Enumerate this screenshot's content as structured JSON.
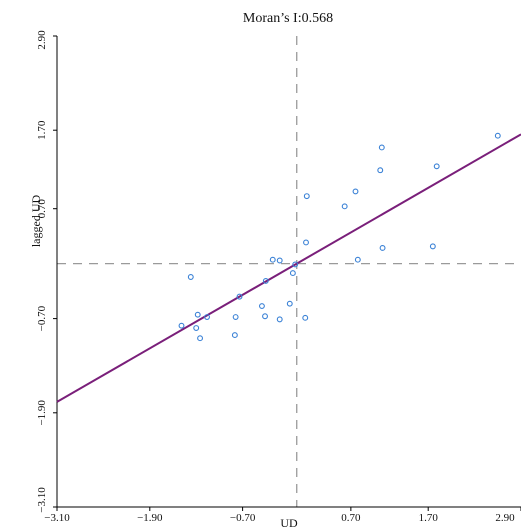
{
  "chart_data": {
    "type": "scatter",
    "title": "Moran’s I:0.568",
    "xlabel": "UD",
    "ylabel": "lagged UD",
    "xlim": [
      -3.1,
      2.9
    ],
    "ylim": [
      -3.1,
      2.9
    ],
    "x_ticks": [
      "−3.10",
      "−1.90",
      "−0.70",
      "0.70",
      "1.70",
      "2.90"
    ],
    "x_tick_values": [
      -3.1,
      -1.9,
      -0.7,
      0.7,
      1.7,
      2.9
    ],
    "y_ticks": [
      "−3.10",
      "−1.90",
      "−0.70",
      "0.70",
      "1.70",
      "2.90"
    ],
    "y_tick_values": [
      -3.1,
      -1.9,
      -0.7,
      0.7,
      1.7,
      2.9
    ],
    "grid": false,
    "reference_lines": {
      "x": 0.0,
      "y": 0.0
    },
    "regression_line": {
      "slope": 0.568,
      "intercept": 0.0
    },
    "colors": {
      "points": "#3b82d6",
      "regression": "#7a1f7a",
      "reference": "#9a9a9a",
      "axis": "#000000"
    },
    "points": [
      [
        -1.37,
        -0.17
      ],
      [
        -1.49,
        -0.79
      ],
      [
        -1.3,
        -0.82
      ],
      [
        -1.28,
        -0.65
      ],
      [
        -1.25,
        -0.95
      ],
      [
        -1.16,
        -0.68
      ],
      [
        -0.8,
        -0.91
      ],
      [
        -0.79,
        -0.68
      ],
      [
        -0.74,
        -0.42
      ],
      [
        -0.45,
        -0.54
      ],
      [
        -0.41,
        -0.67
      ],
      [
        -0.4,
        -0.22
      ],
      [
        -0.31,
        0.05
      ],
      [
        -0.22,
        0.04
      ],
      [
        -0.22,
        -0.71
      ],
      [
        -0.09,
        -0.51
      ],
      [
        -0.05,
        -0.12
      ],
      [
        -0.02,
        -0.01
      ],
      [
        0.11,
        -0.69
      ],
      [
        0.12,
        0.27
      ],
      [
        0.13,
        0.86
      ],
      [
        0.62,
        0.73
      ],
      [
        0.76,
        0.92
      ],
      [
        0.79,
        0.05
      ],
      [
        1.08,
        1.19
      ],
      [
        1.1,
        1.48
      ],
      [
        1.11,
        0.2
      ],
      [
        1.76,
        0.22
      ],
      [
        1.81,
        1.24
      ],
      [
        2.6,
        1.63
      ]
    ]
  }
}
